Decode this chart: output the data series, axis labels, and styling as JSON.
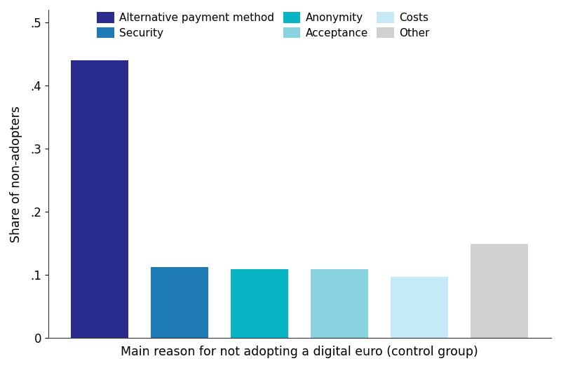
{
  "categories": [
    "Alternative payment method",
    "Security",
    "Anonymity",
    "Acceptance",
    "Costs",
    "Other"
  ],
  "values": [
    0.44,
    0.112,
    0.109,
    0.109,
    0.097,
    0.149
  ],
  "bar_colors": [
    "#2B2D8E",
    "#1E7BB5",
    "#09B5C4",
    "#89D3E0",
    "#C5EAF5",
    "#D0D0D0"
  ],
  "legend_row1_labels": [
    "Alternative payment method",
    "Security",
    "Anonymity"
  ],
  "legend_row1_colors": [
    "#2B2D8E",
    "#1E7BB5",
    "#09B5C4"
  ],
  "legend_row2_labels": [
    "Acceptance",
    "Costs",
    "Other"
  ],
  "legend_row2_colors": [
    "#89D3E0",
    "#C5EAF5",
    "#D0D0D0"
  ],
  "xlabel": "Main reason for not adopting a digital euro (control group)",
  "ylabel": "Share of non-adopters",
  "yticks": [
    0,
    0.1,
    0.2,
    0.3,
    0.4,
    0.5
  ],
  "ytick_labels": [
    "0",
    ".1",
    ".2",
    ".3",
    ".4",
    ".5"
  ],
  "ylim": [
    0,
    0.52
  ],
  "background_color": "#FFFFFF",
  "bar_width": 0.72,
  "figsize": [
    8.0,
    5.25
  ],
  "dpi": 100
}
